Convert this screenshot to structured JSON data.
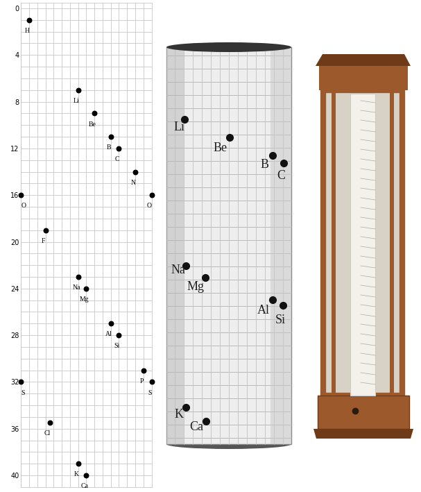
{
  "chart_data": {
    "type": "scatter",
    "x": [
      1,
      7,
      9,
      11,
      12,
      14,
      0,
      16,
      3,
      7,
      8,
      11,
      12,
      15,
      0,
      16,
      3.5,
      7,
      8
    ],
    "values": [
      1,
      7,
      9,
      11,
      12,
      14,
      16,
      16,
      19,
      23,
      24,
      27,
      28,
      31,
      32,
      32,
      35.5,
      39,
      40
    ],
    "point_labels": [
      "H",
      "Li",
      "Be",
      "B",
      "C",
      "N",
      "O",
      "O",
      "F",
      "Na",
      "Mg",
      "Al",
      "Si",
      "P",
      "S",
      "S",
      "Cl",
      "K",
      "Ca"
    ],
    "xlim": [
      0,
      16
    ],
    "ylim": [
      41,
      -0.5
    ],
    "yticks": [
      0,
      4,
      8,
      12,
      16,
      20,
      24,
      28,
      32,
      36,
      40
    ],
    "grid": true,
    "tick_labels": "y",
    "color": "#000000"
  },
  "cylinder": {
    "labels": [
      "Li",
      "Be",
      "B",
      "C",
      "Na",
      "Mg",
      "Al",
      "Si",
      "K",
      "Ca"
    ]
  }
}
